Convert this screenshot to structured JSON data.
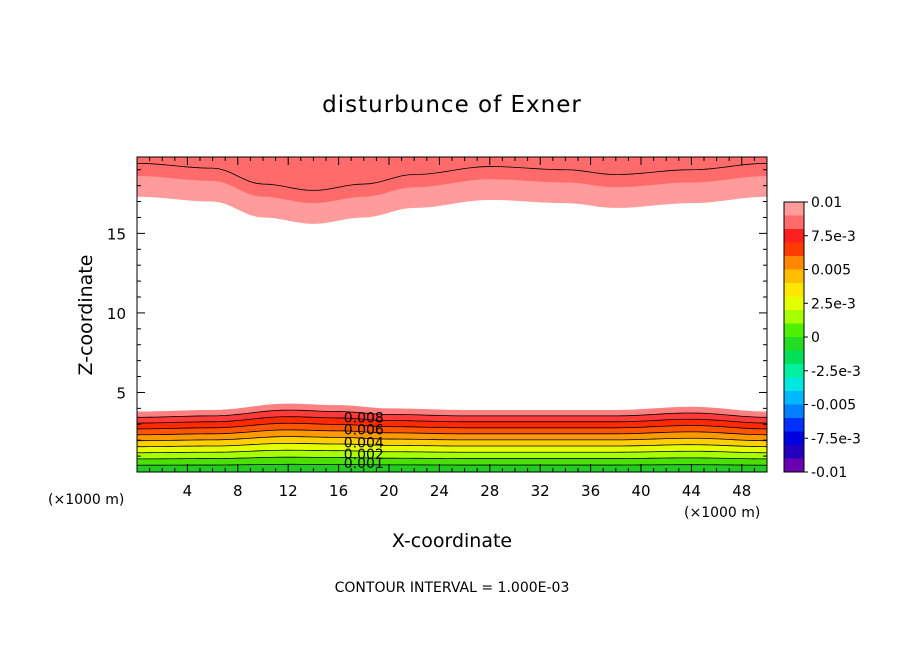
{
  "chart_data": {
    "type": "contour",
    "title": "disturbunce of Exner",
    "xlabel": "X-coordinate",
    "ylabel": "Z-coordinate",
    "x_unit_label": "(×1000 m)",
    "x_unit_label_right": "(×1000 m)",
    "footer": "CONTOUR INTERVAL = 1.000E-03",
    "xlim": [
      0,
      50
    ],
    "ylim": [
      0,
      19.8
    ],
    "x_ticks": [
      4,
      8,
      12,
      16,
      20,
      24,
      28,
      32,
      36,
      40,
      44,
      48
    ],
    "x_tick_labels": [
      "4",
      "8",
      "12",
      "16",
      "20",
      "24",
      "28",
      "32",
      "36",
      "40",
      "44",
      "48"
    ],
    "y_ticks": [
      5,
      10,
      15
    ],
    "y_tick_labels": [
      "5",
      "10",
      "15"
    ],
    "contour_interval": 0.001,
    "contour_labels": [
      "0.008",
      "0.006",
      "0.004",
      "0.002",
      "0.001"
    ],
    "colorbar": {
      "labels": [
        "0.01",
        "7.5e-3",
        "0.005",
        "2.5e-3",
        "0",
        "-2.5e-3",
        "-0.005",
        "-7.5e-3",
        "-0.01"
      ],
      "colors": [
        "#ff9b9b",
        "#ff6a6a",
        "#ff1f1f",
        "#ff3a00",
        "#ff8800",
        "#ffbf00",
        "#ffe600",
        "#e6ff00",
        "#a8ff00",
        "#4cf000",
        "#22dd22",
        "#00e05a",
        "#00f0a0",
        "#00e8e0",
        "#00b8ff",
        "#0080ff",
        "#0030ff",
        "#0000e0",
        "#2200c0",
        "#6a00b0"
      ]
    },
    "lower_layer": {
      "x": [
        0,
        6,
        12,
        16,
        20,
        26,
        32,
        38,
        44,
        50
      ],
      "top_z": [
        3.8,
        3.9,
        4.3,
        4.2,
        4.0,
        3.9,
        3.9,
        3.9,
        4.1,
        3.8
      ],
      "levels": [
        0.001,
        0.002,
        0.003,
        0.004,
        0.005,
        0.006,
        0.007,
        0.008,
        0.009,
        0.01
      ]
    },
    "upper_layer": {
      "x": [
        0,
        6,
        10,
        14,
        18,
        22,
        28,
        34,
        38,
        44,
        50
      ],
      "bottom_z": [
        17.3,
        17.0,
        16.0,
        15.6,
        16.0,
        16.6,
        17.1,
        16.9,
        16.6,
        16.9,
        17.3
      ],
      "levels": [
        0.009,
        0.01
      ]
    }
  }
}
